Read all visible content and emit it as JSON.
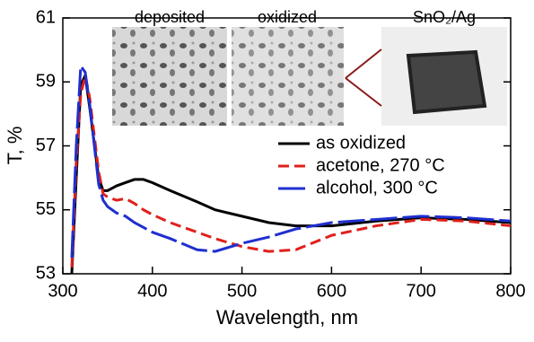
{
  "chart_data": {
    "type": "line",
    "xlabel": "Wavelength, nm",
    "ylabel": "T, %",
    "insets": [
      "deposited",
      "oxidized",
      "SnO₂/Ag"
    ],
    "x": [
      310,
      315,
      320,
      325,
      330,
      340,
      345,
      350,
      360,
      370,
      380,
      390,
      400,
      420,
      450,
      470,
      500,
      530,
      560,
      600,
      650,
      700,
      750,
      800
    ],
    "series": [
      {
        "name": "as oxidized",
        "color": "#000000",
        "dash": "solid",
        "values": [
          53.0,
          56.0,
          58.9,
          59.2,
          58.2,
          56.0,
          55.6,
          55.6,
          55.75,
          55.85,
          55.95,
          55.95,
          55.85,
          55.6,
          55.25,
          55.0,
          54.8,
          54.6,
          54.5,
          54.5,
          54.65,
          54.75,
          54.7,
          54.6
        ]
      },
      {
        "name": "acetone, 270 °C",
        "color": "#e0201b",
        "dash": "short",
        "values": [
          53.2,
          56.5,
          58.6,
          59.2,
          58.5,
          56.2,
          55.5,
          55.4,
          55.3,
          55.35,
          55.2,
          55.0,
          54.85,
          54.6,
          54.3,
          54.1,
          53.85,
          53.7,
          53.75,
          54.2,
          54.5,
          54.7,
          54.65,
          54.5
        ]
      },
      {
        "name": "alcohol, 300 °C",
        "color": "#1f2fd0",
        "dash": "long",
        "values": [
          53.5,
          57.0,
          59.5,
          59.3,
          58.3,
          55.8,
          55.3,
          55.1,
          54.9,
          54.8,
          54.6,
          54.45,
          54.3,
          54.1,
          53.75,
          53.7,
          53.95,
          54.15,
          54.4,
          54.6,
          54.7,
          54.8,
          54.75,
          54.65
        ]
      }
    ],
    "xlim": [
      300,
      800
    ],
    "xticks": [
      300,
      400,
      500,
      600,
      700,
      800
    ],
    "ylim": [
      53,
      61
    ],
    "yticks": [
      53,
      55,
      57,
      59,
      61
    ]
  }
}
